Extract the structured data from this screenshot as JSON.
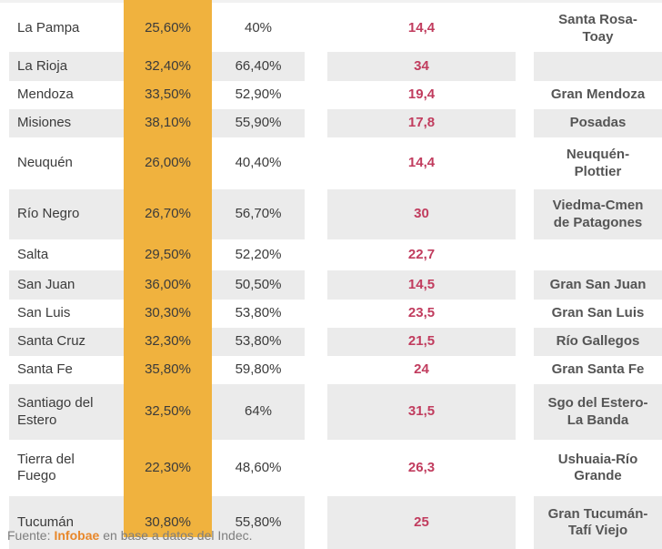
{
  "chart_data": {
    "type": "table",
    "columns": [
      "province",
      "percent_a",
      "percent_b",
      "indicator",
      "agglomerate"
    ],
    "rows": [
      {
        "province": "La Pampa",
        "percent_a": "25,60%",
        "percent_b": "40%",
        "indicator": "14,4",
        "agglomerate": "Santa Rosa-\nToay"
      },
      {
        "province": "La Rioja",
        "percent_a": "32,40%",
        "percent_b": "66,40%",
        "indicator": "34",
        "agglomerate": ""
      },
      {
        "province": "Mendoza",
        "percent_a": "33,50%",
        "percent_b": "52,90%",
        "indicator": "19,4",
        "agglomerate": "Gran Mendoza"
      },
      {
        "province": "Misiones",
        "percent_a": "38,10%",
        "percent_b": "55,90%",
        "indicator": "17,8",
        "agglomerate": "Posadas"
      },
      {
        "province": "Neuquén",
        "percent_a": "26,00%",
        "percent_b": "40,40%",
        "indicator": "14,4",
        "agglomerate": "Neuquén-\nPlottier"
      },
      {
        "province": "Río Negro",
        "percent_a": "26,70%",
        "percent_b": "56,70%",
        "indicator": "30",
        "agglomerate": "Viedma-Cmen\nde Patagones"
      },
      {
        "province": "Salta",
        "percent_a": "29,50%",
        "percent_b": "52,20%",
        "indicator": "22,7",
        "agglomerate": ""
      },
      {
        "province": "San Juan",
        "percent_a": "36,00%",
        "percent_b": "50,50%",
        "indicator": "14,5",
        "agglomerate": "Gran San Juan"
      },
      {
        "province": "San Luis",
        "percent_a": "30,30%",
        "percent_b": "53,80%",
        "indicator": "23,5",
        "agglomerate": "Gran San Luis"
      },
      {
        "province": "Santa Cruz",
        "percent_a": "32,30%",
        "percent_b": "53,80%",
        "indicator": "21,5",
        "agglomerate": "Río Gallegos"
      },
      {
        "province": "Santa Fe",
        "percent_a": "35,80%",
        "percent_b": "59,80%",
        "indicator": "24",
        "agglomerate": "Gran Santa Fe"
      },
      {
        "province": "Santiago del\nEstero",
        "percent_a": "32,50%",
        "percent_b": "64%",
        "indicator": "31,5",
        "agglomerate": "Sgo del Estero-\nLa Banda"
      },
      {
        "province": "Tierra del\nFuego",
        "percent_a": "22,30%",
        "percent_b": "48,60%",
        "indicator": "26,3",
        "agglomerate": "Ushuaia-Río\nGrande"
      },
      {
        "province": "Tucumán",
        "percent_a": "30,80%",
        "percent_b": "55,80%",
        "indicator": "25",
        "agglomerate": "Gran Tucumán-\nTafí Viejo"
      }
    ]
  },
  "footer": {
    "prefix": "Fuente:",
    "source": "Infobae",
    "suffix": "en base a datos del Indec."
  },
  "colors": {
    "highlight_column": "#F0B23E",
    "indicator_red": "#C13C5E",
    "row_shade": "#EBEBEB",
    "source_orange": "#E8872A"
  }
}
